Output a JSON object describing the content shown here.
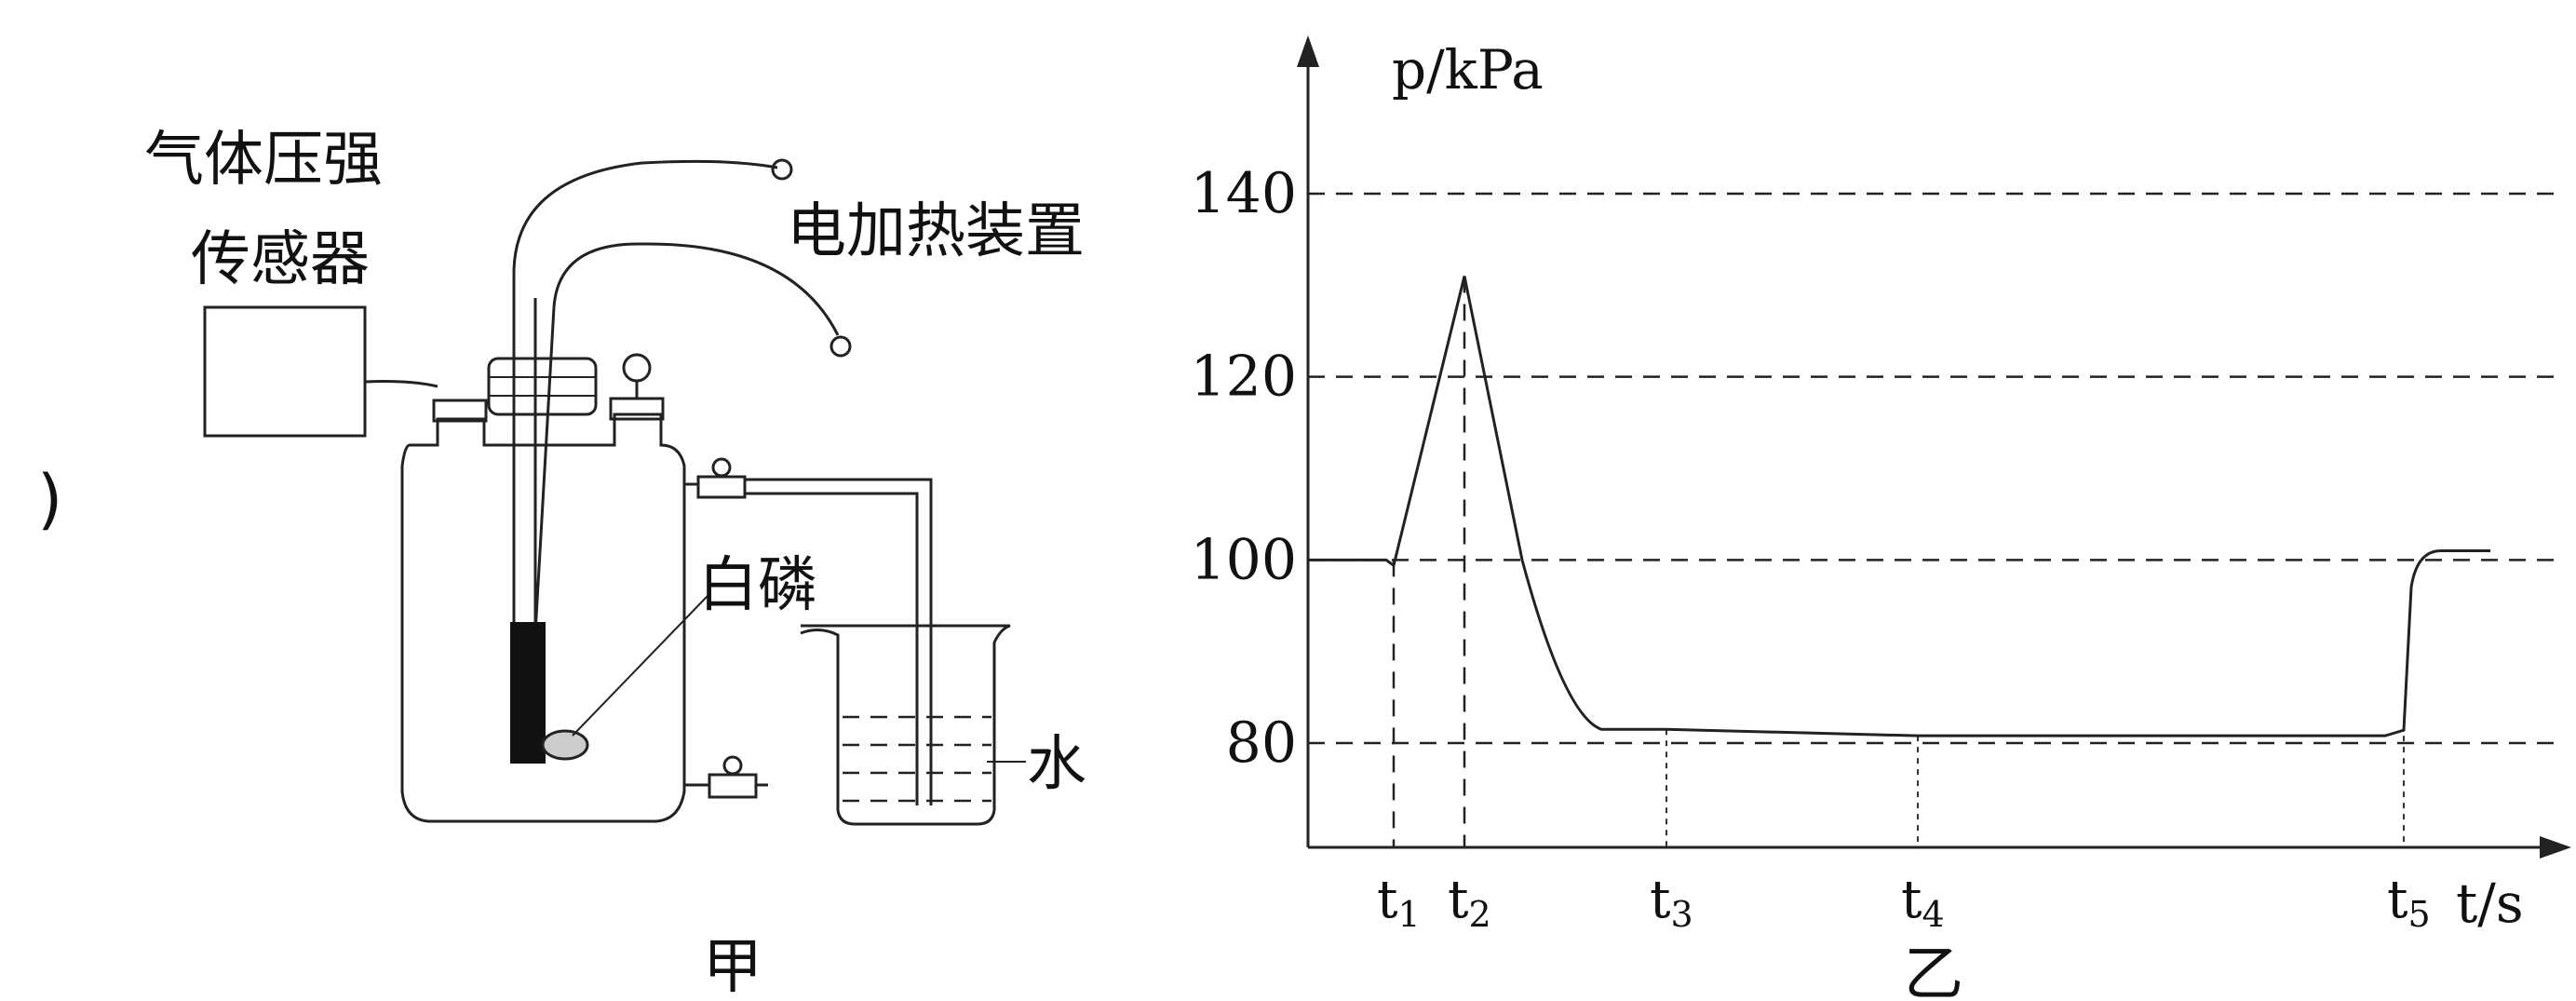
{
  "fragment": ")",
  "apparatus": {
    "sensor_label": [
      "气体压强",
      "传感器"
    ],
    "heater_label": "电加热装置",
    "phosphorus_label": "白磷",
    "water_label": "水",
    "caption": "甲"
  },
  "chart_caption": "乙",
  "chart_data": {
    "type": "line",
    "ylabel": "p/kPa",
    "xlabel": "t/s",
    "y_ticks": [
      "80",
      "100",
      "120",
      "140"
    ],
    "ylim": [
      68,
      160
    ],
    "grid": "dashed horizontal lines at 80, 100, 120, 140",
    "x_markers": [
      {
        "label": "t",
        "sub": "1"
      },
      {
        "label": "t",
        "sub": "2"
      },
      {
        "label": "t",
        "sub": "3"
      },
      {
        "label": "t",
        "sub": "4"
      },
      {
        "label": "t",
        "sub": "5"
      }
    ],
    "series": [
      {
        "values": [
          {
            "x": "start",
            "p": 100
          },
          {
            "x": "t1",
            "p": 100
          },
          {
            "x": "t2",
            "p": 131
          },
          {
            "x": "t3",
            "p": 81.5
          },
          {
            "x": "t4",
            "p": 80.8
          },
          {
            "x": "t5",
            "p": 80.8
          },
          {
            "x": "after t5",
            "p": 101
          }
        ]
      }
    ]
  }
}
